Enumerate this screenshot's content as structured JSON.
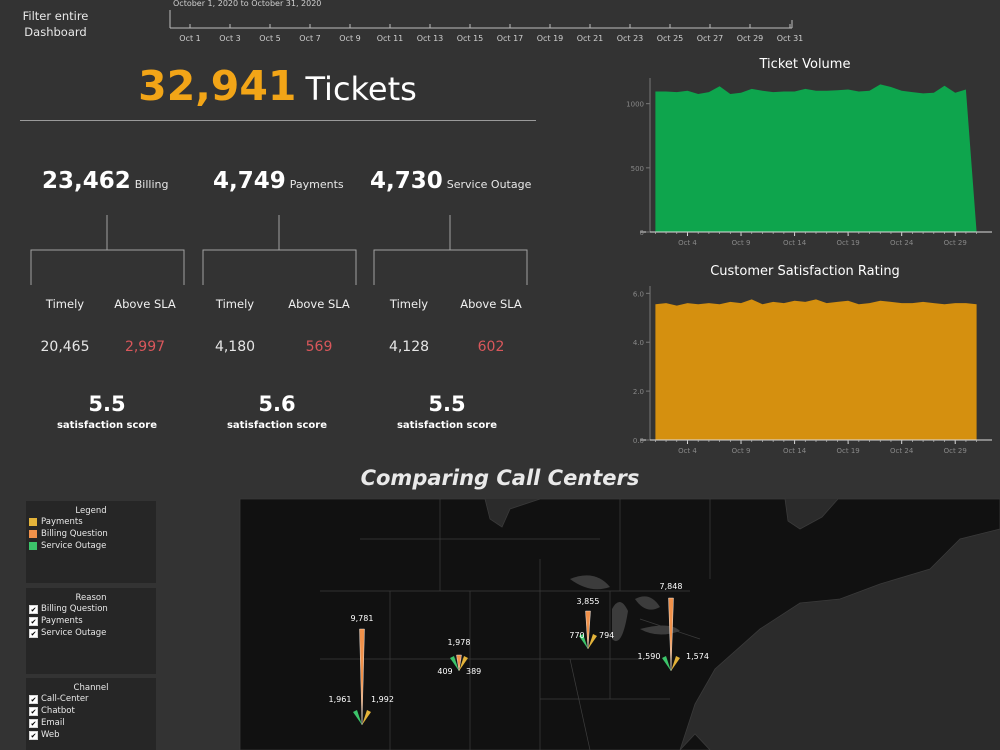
{
  "filter": {
    "label": "Filter entire Dashboard",
    "date_range": "October 1, 2020 to October 31, 2020",
    "ticks": [
      "Oct 1",
      "Oct 3",
      "Oct 5",
      "Oct 7",
      "Oct 9",
      "Oct 11",
      "Oct 13",
      "Oct 15",
      "Oct 17",
      "Oct 19",
      "Oct 21",
      "Oct 23",
      "Oct 25",
      "Oct 27",
      "Oct 29",
      "Oct 31"
    ]
  },
  "summary": {
    "total_value": "32,941",
    "total_label": "Tickets"
  },
  "categories": [
    {
      "value": "23,462",
      "label": "Billing",
      "timely_label": "Timely",
      "sla_label": "Above SLA",
      "timely": "20,465",
      "above_sla": "2,997",
      "score": "5.5",
      "score_label": "satisfaction score"
    },
    {
      "value": "4,749",
      "label": "Payments",
      "timely_label": "Timely",
      "sla_label": "Above SLA",
      "timely": "4,180",
      "above_sla": "569",
      "score": "5.6",
      "score_label": "satisfaction score"
    },
    {
      "value": "4,730",
      "label": "Service Outage",
      "timely_label": "Timely",
      "sla_label": "Above SLA",
      "timely": "4,128",
      "above_sla": "602",
      "score": "5.5",
      "score_label": "satisfaction score"
    }
  ],
  "chart_data": [
    {
      "type": "area",
      "title": "Ticket Volume",
      "color": "#0ea54d",
      "x_ticks": [
        "Oct 4",
        "Oct 9",
        "Oct 14",
        "Oct 19",
        "Oct 24",
        "Oct 29"
      ],
      "y_ticks": [
        "0",
        "500",
        "1000"
      ],
      "ylim": [
        0,
        1200
      ],
      "x": [
        1,
        2,
        3,
        4,
        5,
        6,
        7,
        8,
        9,
        10,
        11,
        12,
        13,
        14,
        15,
        16,
        17,
        18,
        19,
        20,
        21,
        22,
        23,
        24,
        25,
        26,
        27,
        28,
        29,
        30,
        31
      ],
      "values": [
        1095,
        1095,
        1090,
        1100,
        1075,
        1090,
        1135,
        1075,
        1085,
        1115,
        1100,
        1090,
        1095,
        1095,
        1115,
        1100,
        1100,
        1105,
        1110,
        1095,
        1100,
        1150,
        1130,
        1100,
        1090,
        1080,
        1085,
        1140,
        1085,
        1110,
        0
      ]
    },
    {
      "type": "area",
      "title": "Customer Satisfaction Rating",
      "color": "#d5900f",
      "x_ticks": [
        "Oct 4",
        "Oct 9",
        "Oct 14",
        "Oct 19",
        "Oct 24",
        "Oct 29"
      ],
      "y_ticks": [
        "0.0",
        "2.0",
        "4.0",
        "6.0"
      ],
      "ylim": [
        0,
        6.3
      ],
      "x": [
        1,
        2,
        3,
        4,
        5,
        6,
        7,
        8,
        9,
        10,
        11,
        12,
        13,
        14,
        15,
        16,
        17,
        18,
        19,
        20,
        21,
        22,
        23,
        24,
        25,
        26,
        27,
        28,
        29,
        30,
        31
      ],
      "values": [
        5.55,
        5.6,
        5.5,
        5.6,
        5.55,
        5.6,
        5.55,
        5.65,
        5.6,
        5.75,
        5.55,
        5.65,
        5.6,
        5.7,
        5.65,
        5.75,
        5.6,
        5.65,
        5.7,
        5.55,
        5.6,
        5.7,
        5.65,
        5.6,
        5.6,
        5.65,
        5.6,
        5.55,
        5.6,
        5.6,
        5.55
      ]
    }
  ],
  "comparison": {
    "title": "Comparing Call Centers",
    "legend": {
      "title": "Legend",
      "items": [
        {
          "label": "Payments",
          "color": "#e3b33a"
        },
        {
          "label": "Billing Question",
          "color": "#f0914a"
        },
        {
          "label": "Service Outage",
          "color": "#3cc46a"
        }
      ]
    },
    "reason": {
      "title": "Reason",
      "items": [
        "Billing Question",
        "Payments",
        "Service Outage"
      ]
    },
    "channel": {
      "title": "Channel",
      "items": [
        "Call-Center",
        "Chatbot",
        "Email",
        "Web"
      ]
    },
    "centers": [
      {
        "billing": "9,781",
        "outage": "1,961",
        "payments": "1,992"
      },
      {
        "billing": "1,978",
        "outage": "409",
        "payments": "389"
      },
      {
        "billing": "3,855",
        "outage": "770",
        "payments": "794"
      },
      {
        "billing": "7,848",
        "outage": "1,590",
        "payments": "1,574"
      }
    ]
  }
}
